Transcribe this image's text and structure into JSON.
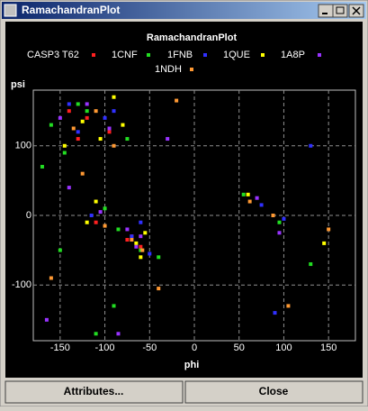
{
  "window_title": "RamachandranPlot",
  "buttons": [
    "Attributes...",
    "Close"
  ],
  "chart_data": {
    "type": "scatter",
    "title": "RamachandranPlot",
    "x_label": "phi",
    "y_label": "psi",
    "xlim": [
      -180,
      180
    ],
    "ylim": [
      -180,
      180
    ],
    "xticks": [
      -150,
      -100,
      -50,
      0,
      50,
      100,
      150
    ],
    "yticks": [
      -100,
      0,
      100
    ],
    "grid": true,
    "series": [
      {
        "name": "CASP3 T62",
        "color": "#ff2020",
        "x": [
          -120,
          -95,
          -70,
          -60,
          -140,
          -110,
          -75,
          -130
        ],
        "values": [
          140,
          120,
          -30,
          -45,
          150,
          -10,
          -35,
          110
        ]
      },
      {
        "name": "1CNF",
        "color": "#22dd22",
        "x": [
          -160,
          -120,
          -100,
          -85,
          -60,
          -145,
          -170,
          -110,
          55,
          95,
          -75,
          -130,
          130,
          -40,
          -90,
          -150
        ],
        "values": [
          130,
          150,
          10,
          -20,
          -50,
          90,
          70,
          -170,
          30,
          -10,
          110,
          160,
          -70,
          -60,
          -130,
          -50
        ]
      },
      {
        "name": "1FNB",
        "color": "#3030ff",
        "x": [
          -130,
          -100,
          -70,
          -60,
          -115,
          -90,
          75,
          100,
          -140,
          -50,
          90,
          130
        ],
        "values": [
          120,
          140,
          -30,
          -10,
          0,
          150,
          15,
          -5,
          160,
          -55,
          -140,
          100
        ]
      },
      {
        "name": "1QUE",
        "color": "#ffff00",
        "x": [
          -125,
          -105,
          -80,
          -65,
          -55,
          -90,
          60,
          -145,
          -120,
          -60,
          145,
          -110
        ],
        "values": [
          135,
          110,
          130,
          -40,
          -25,
          170,
          30,
          100,
          -10,
          -60,
          -40,
          20
        ]
      },
      {
        "name": "1A8P",
        "color": "#9933ff",
        "x": [
          -150,
          -120,
          -95,
          -75,
          -65,
          -105,
          70,
          -165,
          -85,
          -60,
          95,
          -140,
          -30
        ],
        "values": [
          140,
          160,
          125,
          -20,
          -45,
          5,
          25,
          -150,
          -170,
          -30,
          -25,
          40,
          110
        ]
      },
      {
        "name": "1NDH",
        "color": "#ff9933",
        "x": [
          -135,
          -110,
          -90,
          -70,
          -58,
          -100,
          62,
          88,
          105,
          -160,
          -40,
          150,
          -20,
          -125
        ],
        "values": [
          125,
          150,
          100,
          -35,
          -50,
          -15,
          20,
          0,
          -130,
          -90,
          -105,
          -20,
          165,
          60
        ]
      }
    ]
  }
}
